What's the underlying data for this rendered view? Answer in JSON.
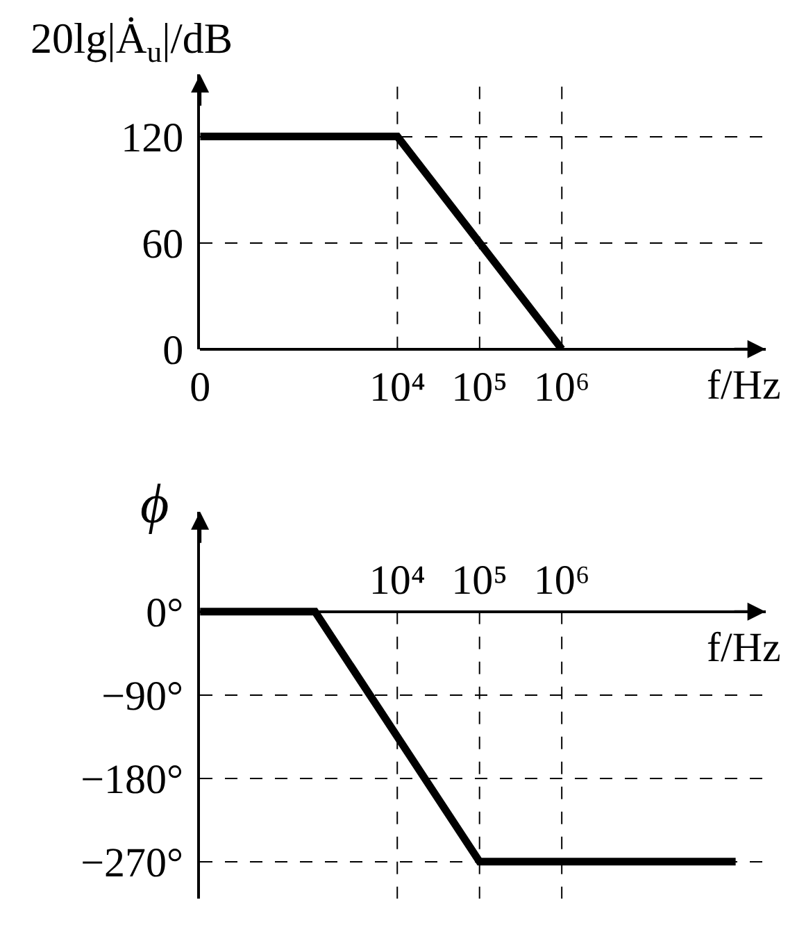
{
  "chart_data": [
    {
      "type": "line",
      "ylabel": "20lg|Ȧ$_{u}$|/dB",
      "xlabel": "f/Hz",
      "log": "x",
      "x": [
        40,
        10000,
        1000000
      ],
      "series": [
        {
          "color": "#000000",
          "values": [
            120,
            120,
            0
          ]
        }
      ],
      "xlim": [
        0,
        300000000
      ],
      "ylim": [
        0,
        155
      ],
      "xticks": [
        0,
        {
          "value": 10000,
          "label": "10⁴"
        },
        {
          "value": 100000,
          "label": "10⁵"
        },
        {
          "value": 1000000,
          "label": "10⁶"
        }
      ],
      "yticks": [
        0,
        60,
        120
      ],
      "grid": "y",
      "line_style": "solid",
      "ref_lines": [
        {
          "axis": "x",
          "value": 10000,
          "line_style": "dashed"
        },
        {
          "axis": "x",
          "value": 100000,
          "line_style": "dashed"
        },
        {
          "axis": "x",
          "value": 1000000,
          "line_style": "dashed"
        }
      ]
    },
    {
      "type": "line",
      "ylabel": "ϕ",
      "xlabel": "f/Hz",
      "log": "x",
      "x": [
        40,
        1000,
        100000,
        130000000
      ],
      "series": [
        {
          "color": "#000000",
          "values": [
            0,
            0,
            -270,
            -270
          ]
        }
      ],
      "xlim": [
        40,
        300000000
      ],
      "ylim": [
        -310,
        108
      ],
      "xticks": [
        {
          "value": 10000,
          "label": "10⁴"
        },
        {
          "value": 100000,
          "label": "10⁵"
        },
        {
          "value": 1000000,
          "label": "10⁶"
        }
      ],
      "yticks": [
        {
          "value": 0,
          "label": "0°"
        },
        {
          "value": -90,
          "label": "−90°"
        },
        {
          "value": -180,
          "label": "−180°"
        },
        {
          "value": -270,
          "label": "−270°"
        }
      ],
      "grid": "y",
      "line_style": "solid",
      "ref_lines": [
        {
          "axis": "x",
          "value": 10000,
          "line_style": "dashed"
        },
        {
          "axis": "x",
          "value": 100000,
          "line_style": "dashed"
        },
        {
          "axis": "x",
          "value": 1000000,
          "line_style": "dashed"
        }
      ]
    }
  ]
}
